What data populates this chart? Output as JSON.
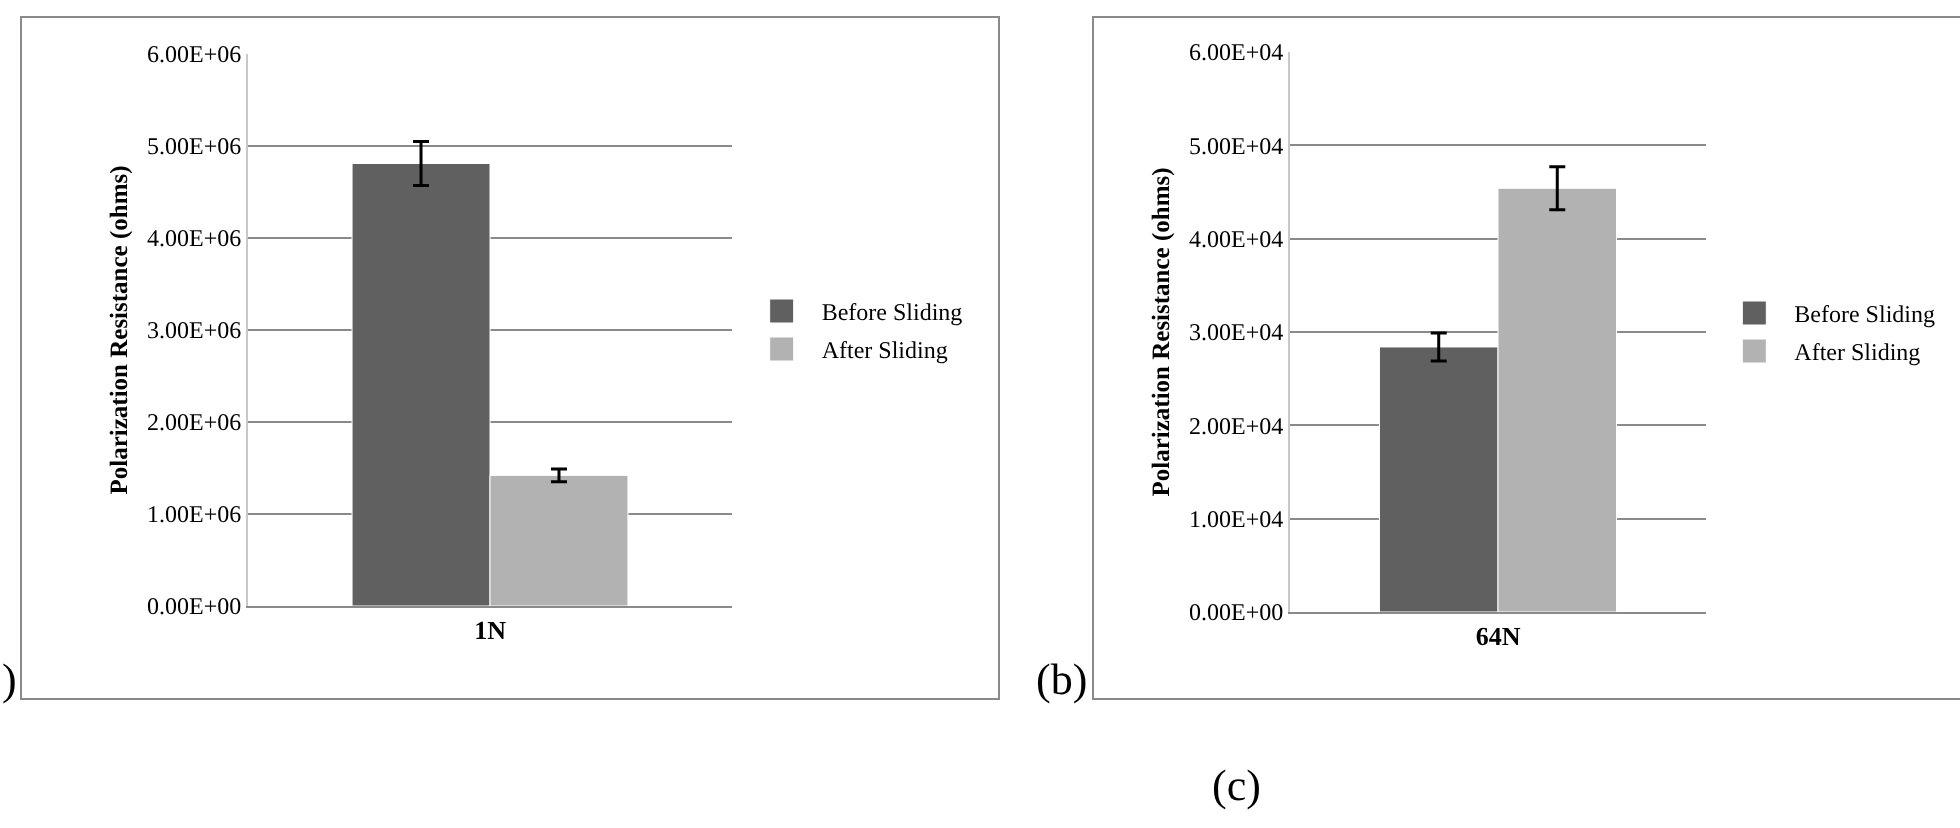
{
  "chart_data": [
    {
      "type": "bar",
      "ylabel": "Polarization Resistance (ohms)",
      "categories": [
        "1N"
      ],
      "series": [
        {
          "name": "Before Sliding",
          "color": "#606060",
          "values": [
            4810000
          ],
          "errors": [
            240000
          ]
        },
        {
          "name": "After Sliding",
          "color": "#b2b2b2",
          "values": [
            1420000
          ],
          "errors": [
            70000
          ]
        }
      ],
      "ylim": [
        0,
        6000000
      ],
      "yticks": [
        {
          "value": 0,
          "label": "0.00E+00"
        },
        {
          "value": 1000000,
          "label": "1.00E+06"
        },
        {
          "value": 2000000,
          "label": "2.00E+06"
        },
        {
          "value": 3000000,
          "label": "3.00E+06"
        },
        {
          "value": 4000000,
          "label": "4.00E+06"
        },
        {
          "value": 5000000,
          "label": "5.00E+06"
        },
        {
          "value": 6000000,
          "label": "6.00E+06"
        }
      ],
      "grid": "y",
      "legend": "right",
      "annotations": [
        ")"
      ]
    },
    {
      "type": "bar",
      "ylabel": "Polarization Resistance (ohms)",
      "categories": [
        "64N"
      ],
      "series": [
        {
          "name": "Before Sliding",
          "color": "#606060",
          "values": [
            28400
          ],
          "errors": [
            1500
          ]
        },
        {
          "name": "After Sliding",
          "color": "#b2b2b2",
          "values": [
            45400
          ],
          "errors": [
            2300
          ]
        }
      ],
      "ylim": [
        0,
        60000
      ],
      "yticks": [
        {
          "value": 0,
          "label": "0.00E+00"
        },
        {
          "value": 10000,
          "label": "1.00E+04"
        },
        {
          "value": 20000,
          "label": "2.00E+04"
        },
        {
          "value": 30000,
          "label": "3.00E+04"
        },
        {
          "value": 40000,
          "label": "4.00E+04"
        },
        {
          "value": 50000,
          "label": "5.00E+04"
        },
        {
          "value": 60000,
          "label": "6.00E+04"
        }
      ],
      "grid": "y",
      "legend": "right",
      "annotations": [
        "(b)",
        "(c)"
      ]
    }
  ]
}
